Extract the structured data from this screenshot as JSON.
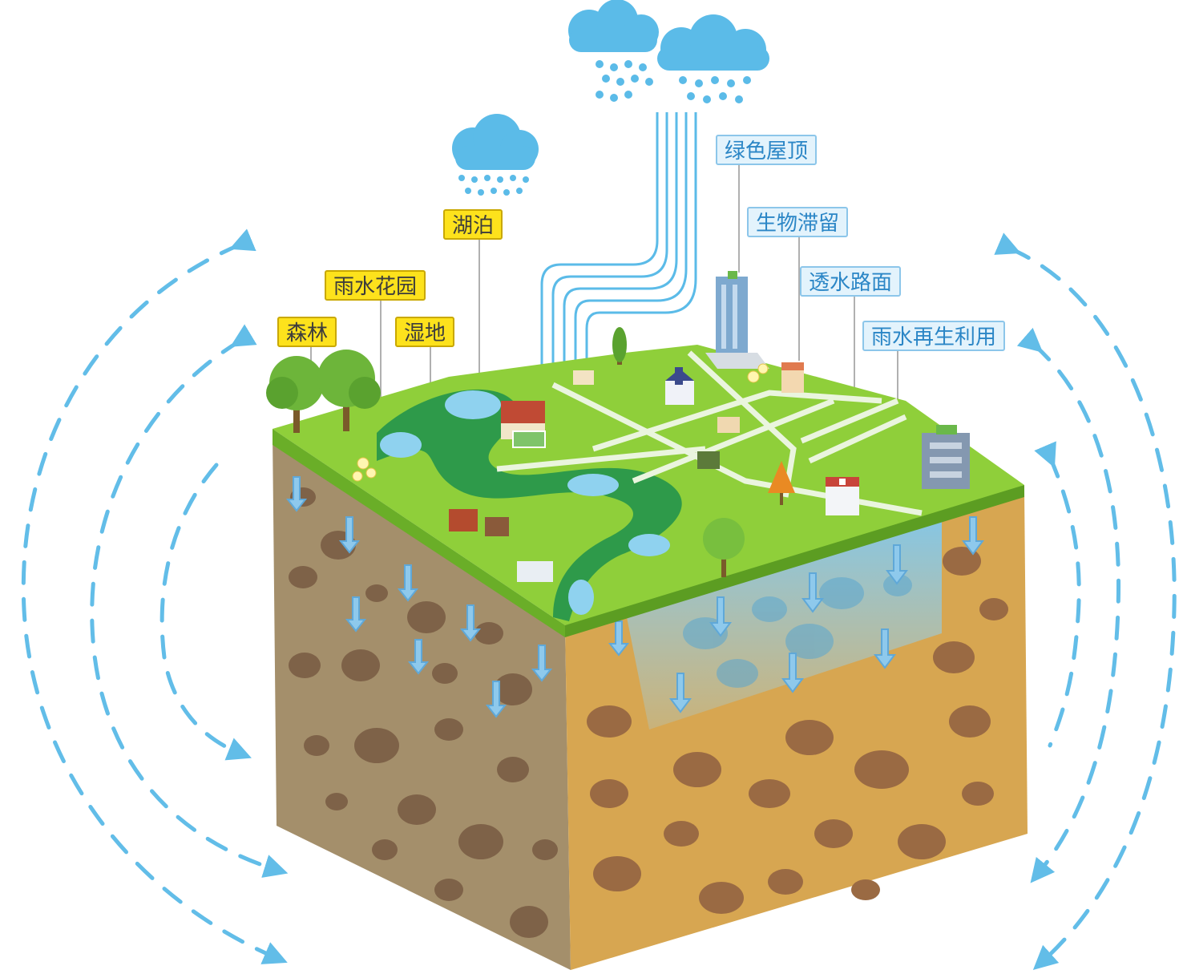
{
  "colors": {
    "rain": "#5bbbe8",
    "rain_dark": "#3da4d8",
    "grass": "#8fcf3a",
    "river": "#2e9a4a",
    "water": "#8fd2ef",
    "soil_front": "#a48f6b",
    "soil_side": "#d7a651",
    "pebble": "#8a6a4e",
    "label_yellow_bg": "#fde21c",
    "label_blue_bg": "#e3f3fc",
    "label_blue_text": "#2b86c6",
    "cycle_arrow": "#62bde8"
  },
  "labels": {
    "forest": "森林",
    "rain_garden": "雨水花园",
    "wetland": "湿地",
    "lake": "湖泊",
    "green_roof": "绿色屋顶",
    "bio_retention": "生物滞留",
    "permeable_pavement": "透水路面",
    "rainwater_reuse": "雨水再生利用"
  }
}
